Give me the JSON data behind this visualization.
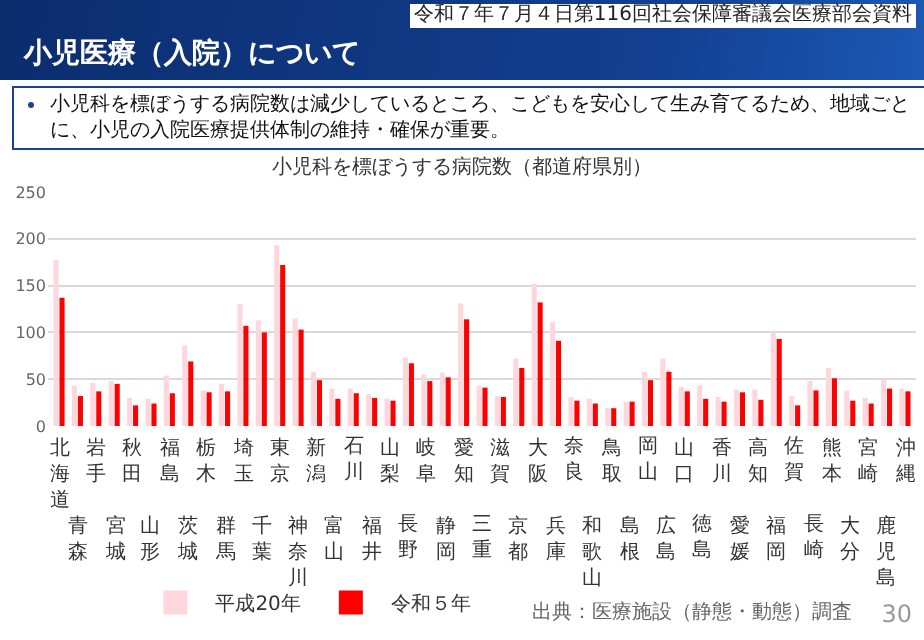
{
  "chart_data": {
    "type": "bar",
    "title": "小児科を標ぼうする病院数（都道府県別）",
    "annotations": [
      "小児医療（入院）について",
      "令和７年７月４日第116回社会保障審議会医療部会資料",
      "小児科を標ぼうする病院数は減少しているところ、こどもを安心して生み育てるため、地域ごとに、小児の入院医療提供体制の維持・確保が重要。",
      "出典：医療施設（静態・動態）調査",
      "30"
    ],
    "categories": [
      "北海道",
      "青森",
      "岩手",
      "宮城",
      "秋田",
      "山形",
      "福島",
      "茨城",
      "栃木",
      "群馬",
      "埼玉",
      "千葉",
      "東京",
      "神奈川",
      "新潟",
      "富山",
      "石川",
      "福井",
      "山梨",
      "長野",
      "岐阜",
      "静岡",
      "愛知",
      "三重",
      "滋賀",
      "京都",
      "大阪",
      "兵庫",
      "奈良",
      "和歌山",
      "鳥取",
      "島根",
      "岡山",
      "広島",
      "山口",
      "徳島",
      "香川",
      "愛媛",
      "高知",
      "福岡",
      "佐賀",
      "長崎",
      "熊本",
      "大分",
      "宮崎",
      "鹿児島",
      "沖縄"
    ],
    "series": [
      {
        "name": "平成20年",
        "color": "#ffd6dc",
        "values": [
          177,
          43,
          46,
          48,
          30,
          29,
          54,
          86,
          38,
          45,
          130,
          113,
          193,
          115,
          58,
          40,
          40,
          34,
          29,
          73,
          55,
          57,
          131,
          43,
          32,
          72,
          152,
          111,
          31,
          29,
          19,
          26,
          58,
          72,
          42,
          43,
          31,
          39,
          39,
          100,
          32,
          48,
          62,
          38,
          30,
          49,
          40
        ]
      },
      {
        "name": "令和５年",
        "color": "#ff0000",
        "values": [
          137,
          32,
          37,
          45,
          22,
          24,
          35,
          69,
          36,
          37,
          107,
          100,
          172,
          103,
          49,
          29,
          35,
          30,
          27,
          67,
          48,
          52,
          114,
          41,
          31,
          62,
          132,
          91,
          27,
          24,
          19,
          26,
          49,
          58,
          37,
          29,
          26,
          36,
          28,
          93,
          22,
          38,
          51,
          27,
          24,
          40,
          37
        ]
      }
    ],
    "ylim": [
      0,
      250
    ],
    "yticks": [
      0,
      50,
      100,
      150,
      200,
      250
    ],
    "grid": "y",
    "legend": "bottom"
  }
}
